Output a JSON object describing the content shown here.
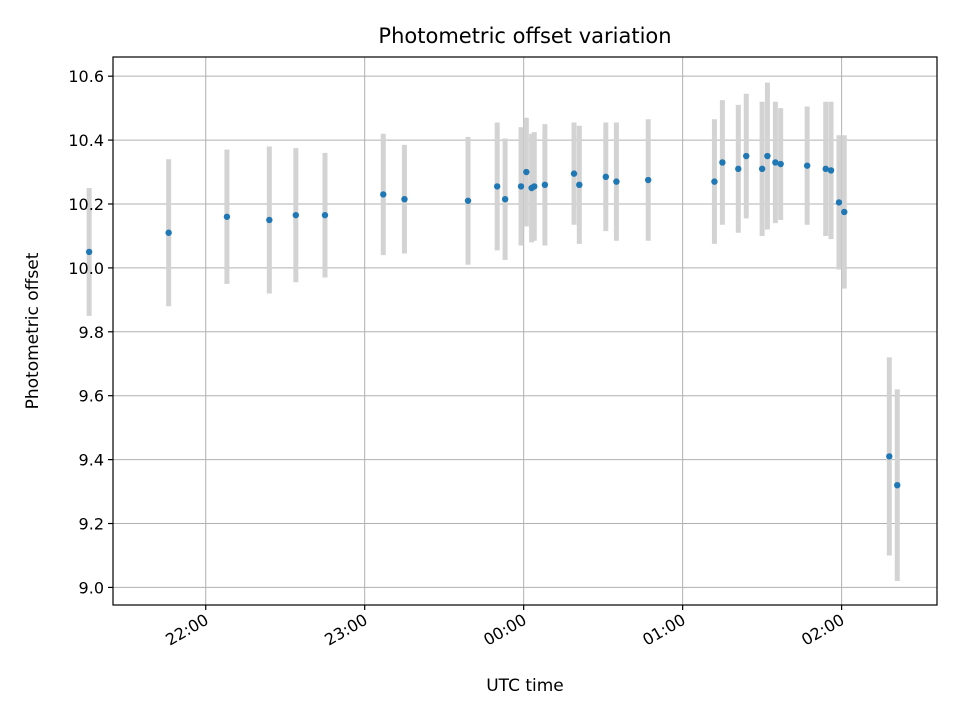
{
  "chart_data": {
    "type": "scatter",
    "title": "Photometric offset variation",
    "xlabel": "UTC time",
    "ylabel": "Photometric offset",
    "x_tick_labels": [
      "22:00",
      "23:00",
      "00:00",
      "01:00",
      "02:00"
    ],
    "y_tick_labels": [
      "9.0",
      "9.2",
      "9.4",
      "9.6",
      "9.8",
      "10.0",
      "10.2",
      "10.4",
      "10.6"
    ],
    "x_ticks": [
      "22:00",
      "23:00",
      "00:00",
      "01:00",
      "02:00"
    ],
    "y_ticks": [
      9.0,
      9.2,
      9.4,
      9.6,
      9.8,
      10.0,
      10.2,
      10.4,
      10.6
    ],
    "xlim": [
      "21:25",
      "02:36"
    ],
    "ylim": [
      8.945,
      10.66
    ],
    "grid": true,
    "colors": {
      "point": "#1f77b4",
      "errorbar": "#d3d3d3",
      "grid": "#b0b0b0"
    },
    "points": [
      {
        "t": "21:16",
        "y": 10.05,
        "err": 0.2
      },
      {
        "t": "21:46",
        "y": 10.11,
        "err": 0.23
      },
      {
        "t": "22:08",
        "y": 10.16,
        "err": 0.21
      },
      {
        "t": "22:24",
        "y": 10.15,
        "err": 0.23
      },
      {
        "t": "22:34",
        "y": 10.165,
        "err": 0.21
      },
      {
        "t": "22:45",
        "y": 10.165,
        "err": 0.195
      },
      {
        "t": "23:07",
        "y": 10.23,
        "err": 0.19
      },
      {
        "t": "23:15",
        "y": 10.215,
        "err": 0.17
      },
      {
        "t": "23:39",
        "y": 10.21,
        "err": 0.2
      },
      {
        "t": "23:50",
        "y": 10.255,
        "err": 0.2
      },
      {
        "t": "23:53",
        "y": 10.215,
        "err": 0.19
      },
      {
        "t": "23:59",
        "y": 10.255,
        "err": 0.185
      },
      {
        "t": "00:01",
        "y": 10.3,
        "err": 0.17
      },
      {
        "t": "00:03",
        "y": 10.25,
        "err": 0.17
      },
      {
        "t": "00:04",
        "y": 10.255,
        "err": 0.17
      },
      {
        "t": "00:08",
        "y": 10.26,
        "err": 0.19
      },
      {
        "t": "00:19",
        "y": 10.295,
        "err": 0.16
      },
      {
        "t": "00:21",
        "y": 10.26,
        "err": 0.185
      },
      {
        "t": "00:31",
        "y": 10.285,
        "err": 0.17
      },
      {
        "t": "00:35",
        "y": 10.27,
        "err": 0.185
      },
      {
        "t": "00:47",
        "y": 10.275,
        "err": 0.19
      },
      {
        "t": "01:12",
        "y": 10.27,
        "err": 0.195
      },
      {
        "t": "01:15",
        "y": 10.33,
        "err": 0.195
      },
      {
        "t": "01:21",
        "y": 10.31,
        "err": 0.2
      },
      {
        "t": "01:24",
        "y": 10.35,
        "err": 0.195
      },
      {
        "t": "01:30",
        "y": 10.31,
        "err": 0.21
      },
      {
        "t": "01:32",
        "y": 10.35,
        "err": 0.23
      },
      {
        "t": "01:35",
        "y": 10.33,
        "err": 0.19
      },
      {
        "t": "01:37",
        "y": 10.325,
        "err": 0.175
      },
      {
        "t": "01:47",
        "y": 10.32,
        "err": 0.185
      },
      {
        "t": "01:54",
        "y": 10.31,
        "err": 0.21
      },
      {
        "t": "01:56",
        "y": 10.305,
        "err": 0.215
      },
      {
        "t": "01:59",
        "y": 10.205,
        "err": 0.21
      },
      {
        "t": "02:01",
        "y": 10.175,
        "err": 0.24
      },
      {
        "t": "02:18",
        "y": 9.41,
        "err": 0.31
      },
      {
        "t": "02:21",
        "y": 9.32,
        "err": 0.3
      }
    ]
  }
}
